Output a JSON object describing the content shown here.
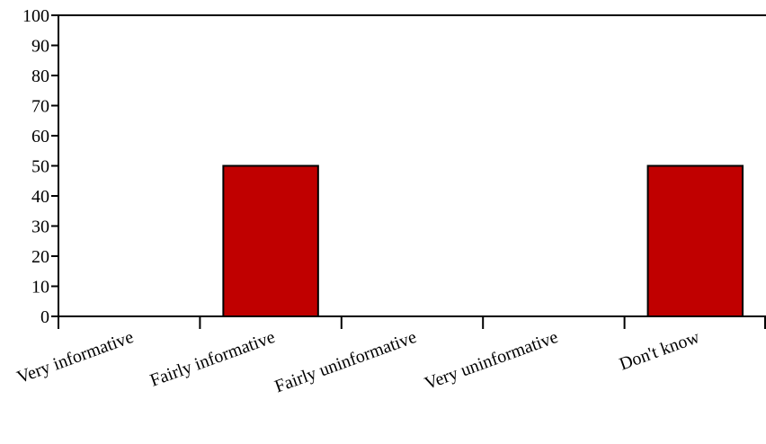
{
  "chart_data": {
    "type": "bar",
    "title": "",
    "xlabel": "",
    "ylabel": "",
    "categories": [
      "Very informative",
      "Fairly informative",
      "Fairly uninformative",
      "Very uninformative",
      "Don't know"
    ],
    "values": [
      0,
      50,
      0,
      0,
      50
    ],
    "ylim": [
      0,
      100
    ],
    "yticks": [
      "0",
      "10",
      "20",
      "30",
      "40",
      "50",
      "60",
      "70",
      "80",
      "90",
      "100"
    ],
    "grid": false,
    "legend": "none",
    "bar_color": "#C00000"
  }
}
